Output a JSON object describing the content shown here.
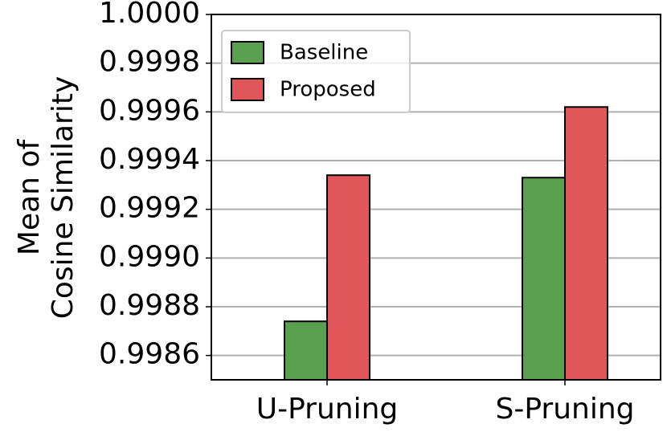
{
  "chart_data": {
    "type": "bar",
    "ylabel": [
      "Mean of",
      "Cosine Similarity"
    ],
    "categories": [
      "U-Pruning",
      "S-Pruning"
    ],
    "series": [
      {
        "name": "Baseline",
        "color": "#59a14f",
        "values": [
          0.99874,
          0.99933
        ]
      },
      {
        "name": "Proposed",
        "color": "#e15759",
        "values": [
          0.99934,
          0.99962
        ]
      }
    ],
    "ylim": [
      0.9985,
      1.0
    ],
    "yticks": [
      {
        "value": 0.9986,
        "label": "0.9986"
      },
      {
        "value": 0.9988,
        "label": "0.9988"
      },
      {
        "value": 0.999,
        "label": "0.9990"
      },
      {
        "value": 0.9992,
        "label": "0.9992"
      },
      {
        "value": 0.9994,
        "label": "0.9994"
      },
      {
        "value": 0.9996,
        "label": "0.9996"
      },
      {
        "value": 0.9998,
        "label": "0.9998"
      },
      {
        "value": 1.0,
        "label": "1.0000"
      }
    ],
    "grid": true,
    "legend": "upper left"
  }
}
